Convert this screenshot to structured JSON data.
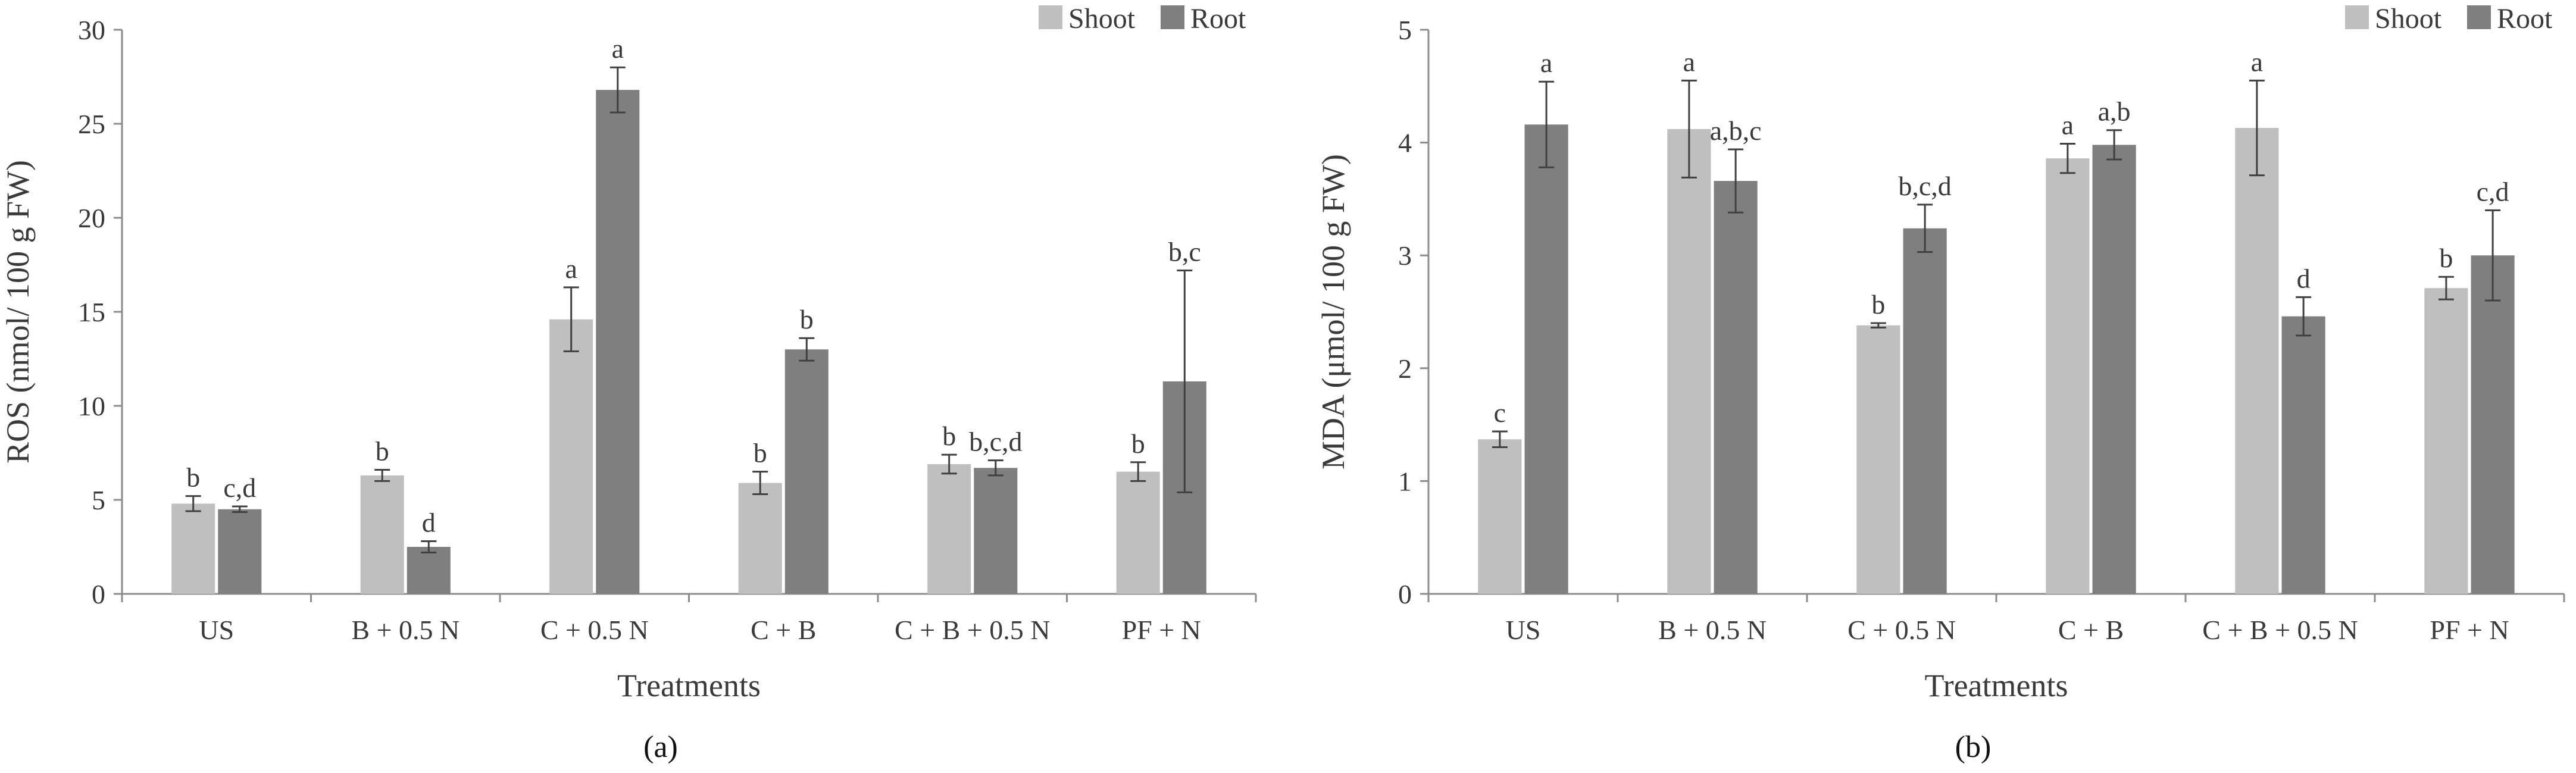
{
  "colors": {
    "shoot": "#bfbfbf",
    "root": "#7f7f7f",
    "axis": "#8c8c8c",
    "error": "#404040"
  },
  "chart_data": [
    {
      "type": "bar",
      "panel_label": "(a)",
      "title": "",
      "xlabel": "Treatments",
      "ylabel": "ROS (nmol/ 100 g FW)",
      "ylim": [
        0,
        30
      ],
      "yticks": [
        0,
        5,
        10,
        15,
        20,
        25,
        30
      ],
      "yticks_text": [
        "0",
        "5",
        "10",
        "15",
        "20",
        "25",
        "30"
      ],
      "grid": false,
      "legend": "top-right",
      "categories": [
        "US",
        "B + 0.5 N",
        "C + 0.5 N",
        "C + B",
        "C + B + 0.5 N",
        "PF + N"
      ],
      "series": [
        {
          "name": "Shoot",
          "values": [
            4.8,
            6.3,
            14.6,
            5.9,
            6.9,
            6.5
          ],
          "errors": [
            0.4,
            0.3,
            1.7,
            0.6,
            0.5,
            0.5
          ],
          "labels": [
            "b",
            "b",
            "a",
            "b",
            "b",
            "b"
          ]
        },
        {
          "name": "Root",
          "values": [
            4.5,
            2.5,
            26.8,
            13.0,
            6.7,
            11.3
          ],
          "errors": [
            0.15,
            0.3,
            1.2,
            0.6,
            0.4,
            5.9
          ],
          "labels": [
            "c,d",
            "d",
            "a",
            "b",
            "b,c,d",
            "b,c"
          ]
        }
      ]
    },
    {
      "type": "bar",
      "panel_label": "(b)",
      "title": "",
      "xlabel": "Treatments",
      "ylabel": "MDA (μmol/ 100 g FW)",
      "ylim": [
        0,
        5
      ],
      "yticks": [
        0,
        1,
        2,
        3,
        4,
        5
      ],
      "yticks_text": [
        "0",
        "1",
        "2",
        "3",
        "4",
        "5"
      ],
      "grid": false,
      "legend": "top-right",
      "categories": [
        "US",
        "B + 0.5 N",
        "C + 0.5 N",
        "C + B",
        "C + B + 0.5 N",
        "PF + N"
      ],
      "series": [
        {
          "name": "Shoot",
          "values": [
            1.37,
            4.12,
            2.38,
            3.86,
            4.13,
            2.71
          ],
          "errors": [
            0.07,
            0.43,
            0.02,
            0.13,
            0.42,
            0.1
          ],
          "labels": [
            "c",
            "a",
            "b",
            "a",
            "a",
            "b"
          ]
        },
        {
          "name": "Root",
          "values": [
            4.16,
            3.66,
            3.24,
            3.98,
            2.46,
            3.0
          ],
          "errors": [
            0.38,
            0.28,
            0.21,
            0.13,
            0.17,
            0.4
          ],
          "labels": [
            "a",
            "a,b,c",
            "b,c,d",
            "a,b",
            "d",
            "c,d"
          ]
        }
      ]
    }
  ]
}
